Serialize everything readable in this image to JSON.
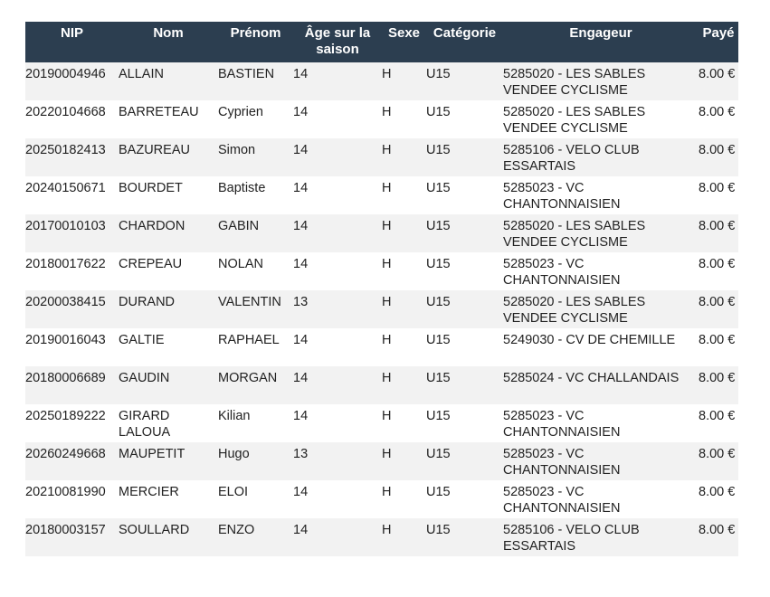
{
  "table": {
    "headers": [
      "NIP",
      "Nom",
      "Prénom",
      "Âge sur la saison",
      "Sexe",
      "Catégorie",
      "Engageur",
      "Payé"
    ],
    "rows": [
      [
        "20190004946",
        "ALLAIN",
        "BASTIEN",
        "14",
        "H",
        "U15",
        "5285020 - LES SABLES VENDEE CYCLISME",
        "8.00 €"
      ],
      [
        "20220104668",
        "BARRETEAU",
        "Cyprien",
        "14",
        "H",
        "U15",
        "5285020 - LES SABLES VENDEE CYCLISME",
        "8.00 €"
      ],
      [
        "20250182413",
        "BAZUREAU",
        "Simon",
        "14",
        "H",
        "U15",
        "5285106 - VELO CLUB ESSARTAIS",
        "8.00 €"
      ],
      [
        "20240150671",
        "BOURDET",
        "Baptiste",
        "14",
        "H",
        "U15",
        "5285023 - VC CHANTONNAISIEN",
        "8.00 €"
      ],
      [
        "20170010103",
        "CHARDON",
        "GABIN",
        "14",
        "H",
        "U15",
        "5285020 - LES SABLES VENDEE CYCLISME",
        "8.00 €"
      ],
      [
        "20180017622",
        "CREPEAU",
        "NOLAN",
        "14",
        "H",
        "U15",
        "5285023 - VC CHANTONNAISIEN",
        "8.00 €"
      ],
      [
        "20200038415",
        "DURAND",
        "VALENTIN",
        "13",
        "H",
        "U15",
        "5285020 - LES SABLES VENDEE CYCLISME",
        "8.00 €"
      ],
      [
        "20190016043",
        "GALTIE",
        "RAPHAEL",
        "14",
        "H",
        "U15",
        "5249030 - CV DE CHEMILLE",
        "8.00 €"
      ],
      [
        "20180006689",
        "GAUDIN",
        "MORGAN",
        "14",
        "H",
        "U15",
        "5285024 - VC CHALLANDAIS",
        "8.00 €"
      ],
      [
        "20250189222",
        "GIRARD LALOUA",
        "Kilian",
        "14",
        "H",
        "U15",
        "5285023 - VC CHANTONNAISIEN",
        "8.00 €"
      ],
      [
        "20260249668",
        "MAUPETIT",
        "Hugo",
        "13",
        "H",
        "U15",
        "5285023 - VC CHANTONNAISIEN",
        "8.00 €"
      ],
      [
        "20210081990",
        "MERCIER",
        "ELOI",
        "14",
        "H",
        "U15",
        "5285023 - VC CHANTONNAISIEN",
        "8.00 €"
      ],
      [
        "20180003157",
        "SOULLARD",
        "ENZO",
        "14",
        "H",
        "U15",
        "5285106 - VELO CLUB ESSARTAIS",
        "8.00 €"
      ]
    ]
  },
  "colors": {
    "header_bg": "#2c3e50",
    "row_alt": "#f2f2f2"
  }
}
